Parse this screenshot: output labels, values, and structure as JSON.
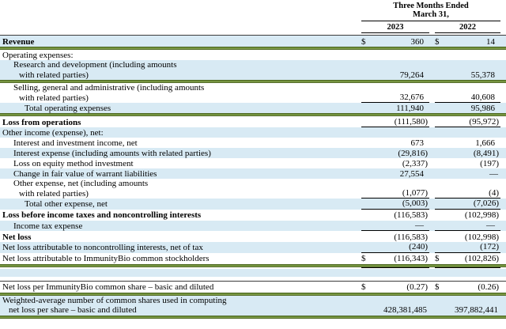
{
  "header": {
    "period_line1": "Three Months Ended",
    "period_line2": "March 31,",
    "year1": "2023",
    "year2": "2022"
  },
  "colors": {
    "row_highlight": "#d8eaf4",
    "separator_green": "#76993d",
    "rule_black": "#000000"
  },
  "rows": [
    {
      "label": "Revenue",
      "dollar": "$",
      "v1": "360",
      "v2": "14"
    },
    {
      "label": "Operating expenses:"
    },
    {
      "label1": "Research and development (including amounts",
      "label2": "with related parties)",
      "v1": "79,264",
      "v2": "55,378"
    },
    {
      "label1": "Selling, general and administrative (including amounts",
      "label2": "with related parties)",
      "v1": "32,676",
      "v2": "40,608"
    },
    {
      "label": "Total operating expenses",
      "v1": "111,940",
      "v2": "95,986"
    },
    {
      "label": "Loss from operations",
      "v1": "(111,580)",
      "v2": "(95,972)"
    },
    {
      "label": "Other income (expense), net:"
    },
    {
      "label": "Interest and investment income, net",
      "v1": "673",
      "v2": "1,666"
    },
    {
      "label": "Interest expense (including amounts with related parties)",
      "v1": "(29,816)",
      "v2": "(8,491)"
    },
    {
      "label": "Loss on equity method investment",
      "v1": "(2,337)",
      "v2": "(197)"
    },
    {
      "label": "Change in fair value of warrant liabilities",
      "v1": "27,554",
      "v2": "—"
    },
    {
      "label1": "Other expense, net (including amounts",
      "label2": "with related parties)",
      "v1": "(1,077)",
      "v2": "(4)"
    },
    {
      "label": "Total other expense, net",
      "v1": "(5,003)",
      "v2": "(7,026)"
    },
    {
      "label": "Loss before income taxes and noncontrolling interests",
      "v1": "(116,583)",
      "v2": "(102,998)"
    },
    {
      "label": "Income tax expense",
      "v1": "—",
      "v2": "—"
    },
    {
      "label": "Net loss",
      "v1": "(116,583)",
      "v2": "(102,998)"
    },
    {
      "label": "Net loss attributable to noncontrolling interests, net of tax",
      "v1": "(240)",
      "v2": "(172)"
    },
    {
      "label": "Net loss attributable to ImmunityBio common stockholders",
      "dollar": "$",
      "v1": "(116,343)",
      "v2": "(102,826)"
    },
    {
      "label": "Net loss per ImmunityBio common share – basic and diluted",
      "dollar": "$",
      "v1": "(0.27)",
      "v2": "(0.26)"
    },
    {
      "label1": "Weighted-average number of common shares used in computing",
      "label2": "net loss per share – basic and diluted",
      "v1": "428,381,485",
      "v2": "397,882,441"
    }
  ]
}
